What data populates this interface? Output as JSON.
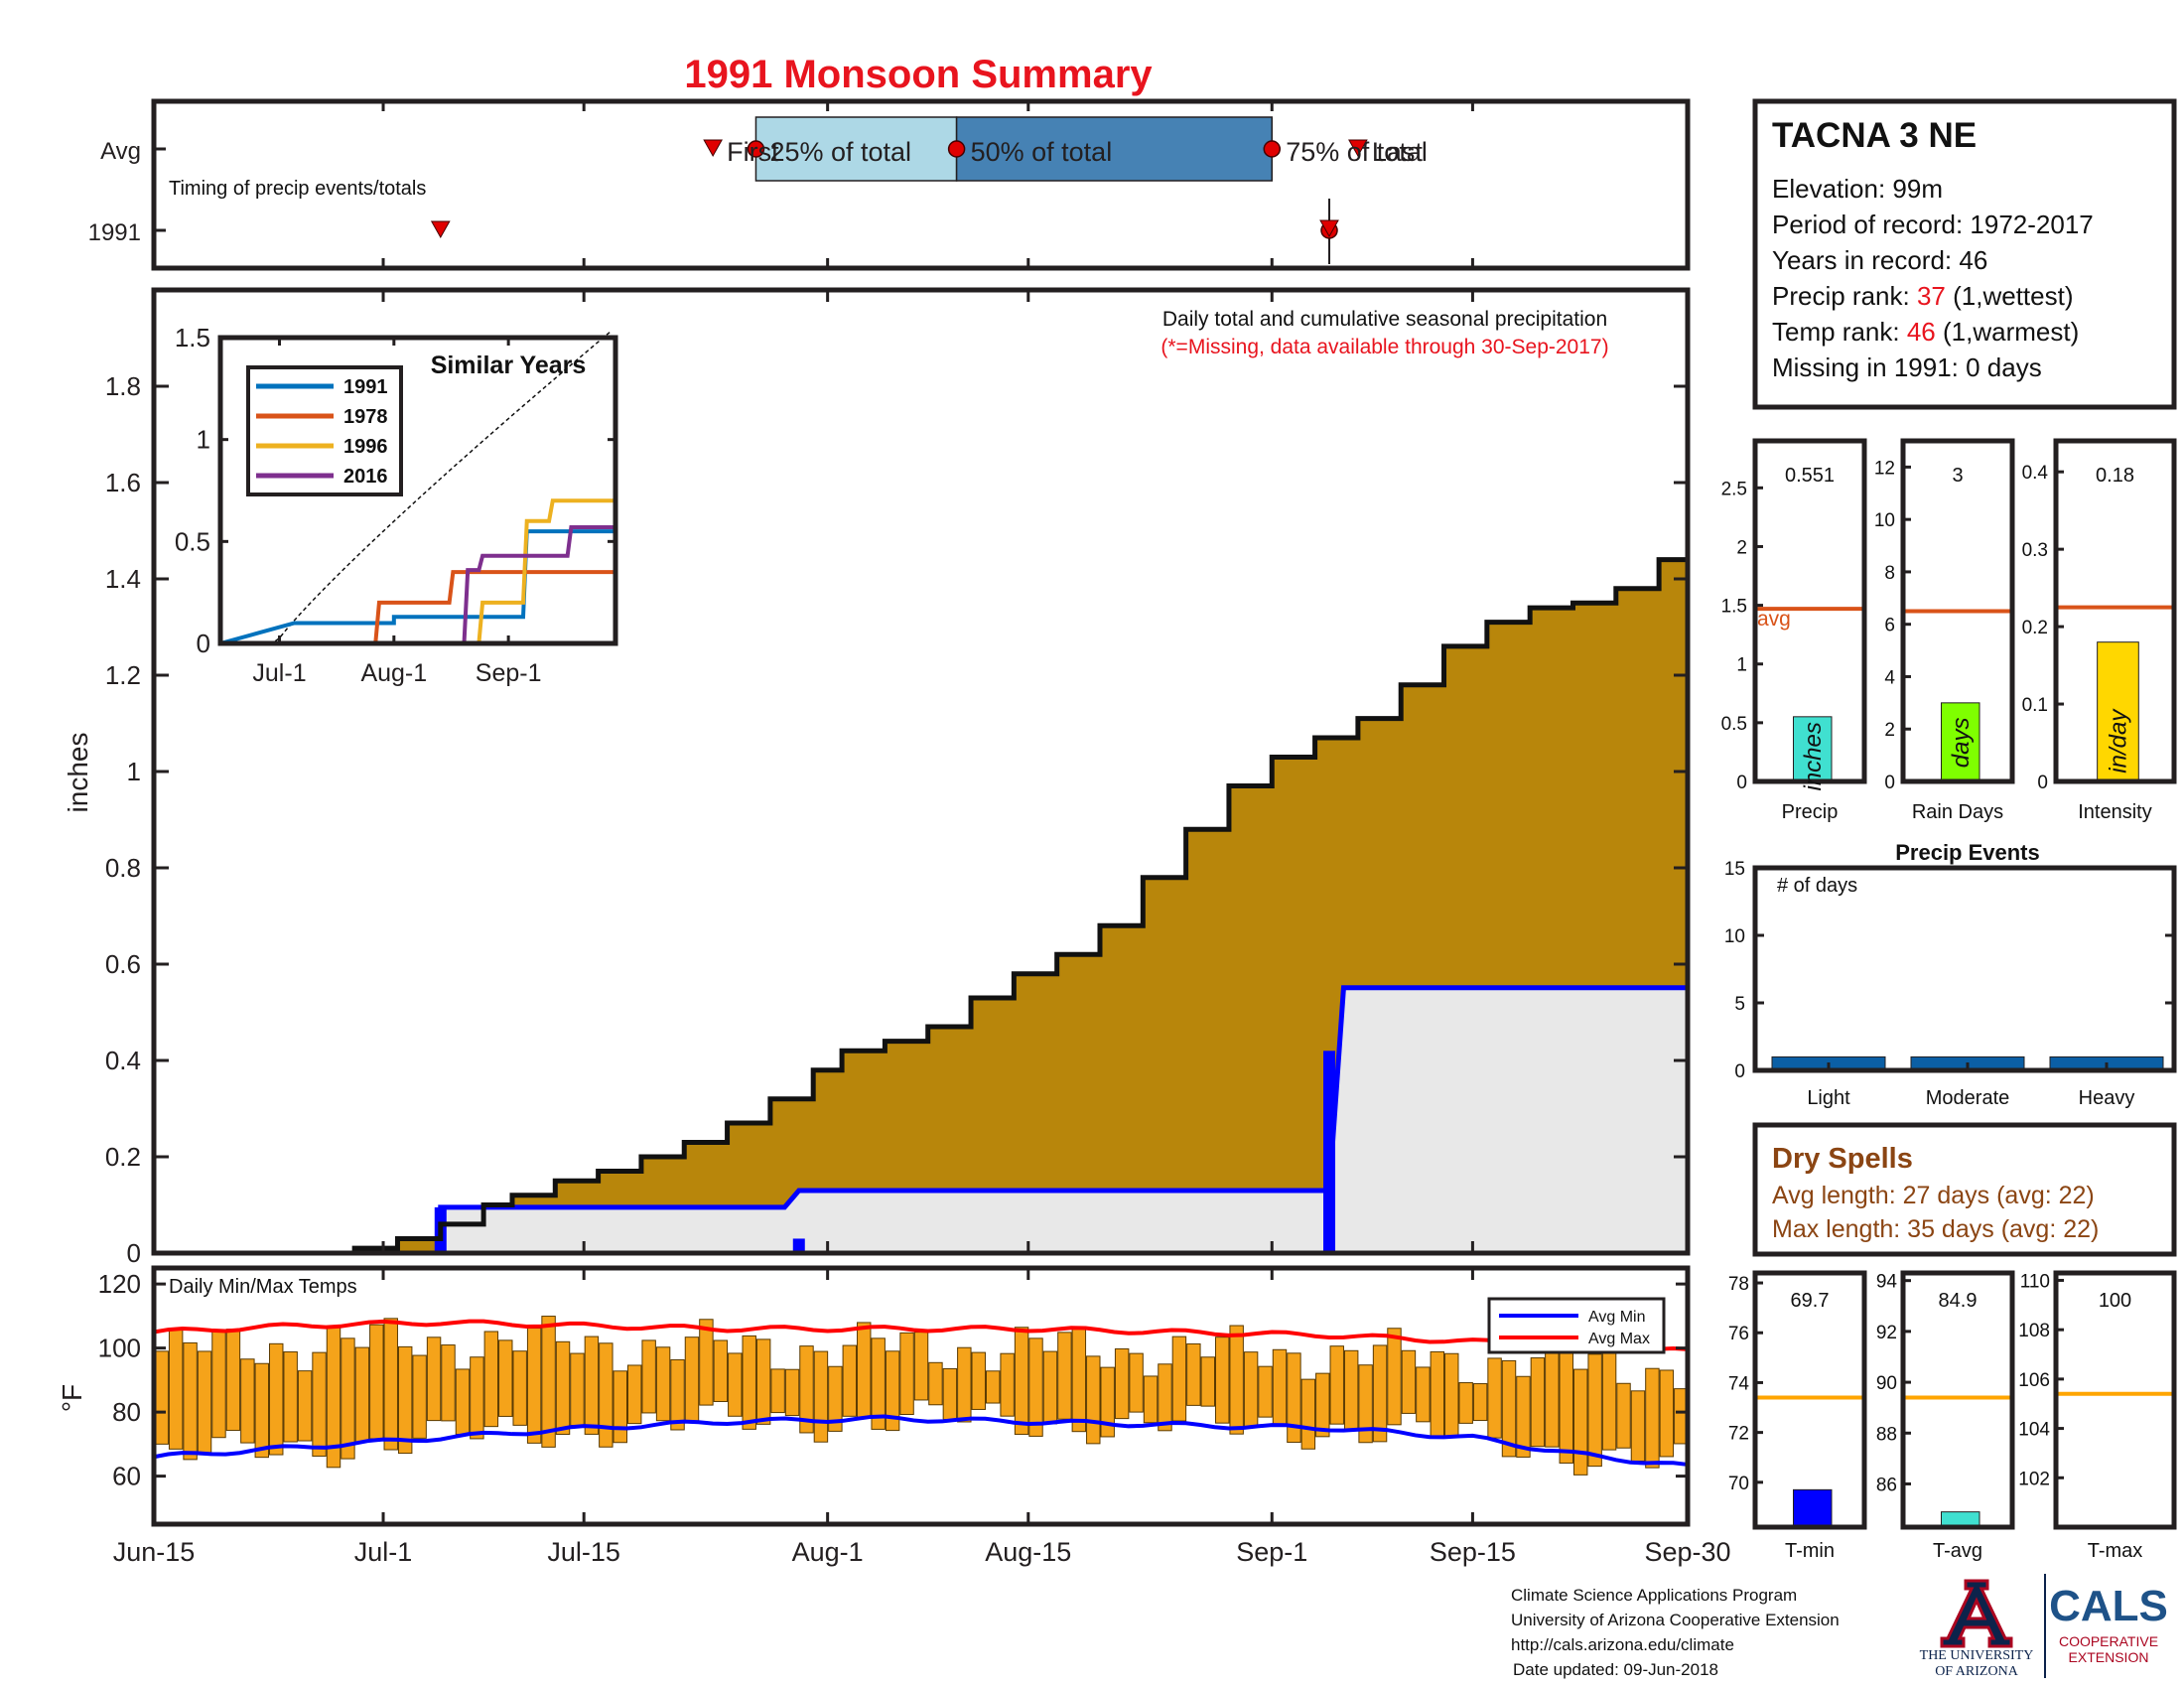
{
  "title": "1991 Monsoon Summary",
  "timing": {
    "row_labels": [
      "Avg",
      "1991"
    ],
    "caption": "Timing of precip events/totals",
    "labels": {
      "first": "First",
      "p25": "25% of total",
      "p50": "50% of total",
      "p75": "75% of total",
      "last": "Last"
    },
    "avg": {
      "first": "2018-07-24",
      "p25": "2018-07-27",
      "p50": "2018-08-10",
      "p75": "2018-09-01",
      "last": "2018-09-07"
    },
    "y1991": {
      "first": "2018-07-05",
      "p25": "2018-09-05",
      "p50": "2018-09-05",
      "p75": "2018-09-05",
      "last": "2018-09-05"
    }
  },
  "main": {
    "ylabel": "inches",
    "annotation": "Daily total and cumulative seasonal precipitation",
    "missing_note": "(*=Missing, data available through 30-Sep-2017)",
    "x_ticks": [
      "Jun-15",
      "Jul-1",
      "Jul-15",
      "Aug-1",
      "Aug-15",
      "Sep-1",
      "Sep-15",
      "Sep-30"
    ],
    "y_ticks": [
      "0",
      "0.2",
      "0.4",
      "0.6",
      "0.8",
      "1",
      "1.2",
      "1.4",
      "1.6",
      "1.8"
    ]
  },
  "inset": {
    "title": "Similar Years",
    "legend": [
      "1991",
      "1978",
      "1996",
      "2016"
    ],
    "colors": [
      "#0072bd",
      "#d95319",
      "#edb120",
      "#7e2f8e"
    ],
    "x_ticks": [
      "Jul-1",
      "Aug-1",
      "Sep-1"
    ],
    "y_ticks": [
      "0",
      "0.5",
      "1",
      "1.5"
    ]
  },
  "temps": {
    "label": "Daily Min/Max Temps",
    "ylabel": "°F",
    "legend": [
      "Avg Min",
      "Avg Max"
    ],
    "y_ticks": [
      "60",
      "80",
      "100",
      "120"
    ]
  },
  "station": {
    "name": "TACNA 3 NE",
    "elevation": "Elevation: 99m",
    "period": "Period of record: 1972-2017",
    "years": "Years in record: 46",
    "precip_rank_label": "Precip rank:",
    "precip_rank": "37",
    "precip_rank_note": "(1,wettest)",
    "temp_rank_label": "Temp rank:",
    "temp_rank": "46",
    "temp_rank_note": "(1,warmest)",
    "missing": "Missing in 1991: 0 days"
  },
  "mini_precip": [
    {
      "label": "Precip",
      "unit": "inches",
      "value_text": "0.551",
      "avg_text": "avg",
      "y_ticks": [
        "0",
        "0.5",
        "1",
        "1.5",
        "2",
        "2.5"
      ]
    },
    {
      "label": "Rain Days",
      "unit": "days",
      "value_text": "3",
      "y_ticks": [
        "0",
        "2",
        "4",
        "6",
        "8",
        "10",
        "12"
      ]
    },
    {
      "label": "Intensity",
      "unit": "in/day",
      "value_text": "0.18",
      "y_ticks": [
        "0",
        "0.1",
        "0.2",
        "0.3",
        "0.4"
      ]
    }
  ],
  "events": {
    "title": "Precip Events",
    "ylabel": "# of days",
    "categories": [
      "Light",
      "Moderate",
      "Heavy"
    ],
    "y_ticks": [
      "0",
      "5",
      "10",
      "15"
    ]
  },
  "dry_spells": {
    "title": "Dry Spells",
    "avg_length": "Avg length: 27 days (avg: 22)",
    "max_length": "Max length: 35 days (avg: 22)"
  },
  "mini_temp": [
    {
      "label": "T-min",
      "value_text": "69.7",
      "y_ticks": [
        "70",
        "72",
        "74",
        "76",
        "78"
      ]
    },
    {
      "label": "T-avg",
      "value_text": "84.9",
      "y_ticks": [
        "86",
        "88",
        "90",
        "92",
        "94"
      ]
    },
    {
      "label": "T-max",
      "value_text": "100",
      "y_ticks": [
        "102",
        "104",
        "106",
        "108",
        "110"
      ]
    }
  ],
  "footer": {
    "line1": "Climate Science Applications Program",
    "line2": "University of Arizona Cooperative Extension",
    "line3": "http://cals.arizona.edu/climate",
    "line4": "Date updated: 09-Jun-2018"
  },
  "logos": {
    "ua_line1": "THE UNIVERSITY",
    "ua_line2": "OF ARIZONA",
    "cals": "CALS",
    "cals_sub1": "COOPERATIVE",
    "cals_sub2": "EXTENSION"
  },
  "colors": {
    "cumulative_fill": "#b8860b",
    "avg_fill": "#e8e8e8",
    "avg_line": "#0000ff",
    "temp_bars": "#f5a31a",
    "avg_max_line": "#ff0000",
    "avg_min_line": "#0000ff",
    "orange_avg": "#d95319",
    "precip_bar": "#40e0d0",
    "raindays_bar": "#7fff00",
    "intensity_bar": "#ffd700",
    "event_bar": "#0b5fa5",
    "tmin_bar": "#0000ff",
    "tavg_bar": "#40e0d0",
    "temp_avg_line": "#ffa500",
    "timing_light": "#add8e6",
    "timing_dark": "#4682b4",
    "title_red": "#e8141e",
    "dry_spell": "#8b4513"
  },
  "chart_data": [
    {
      "type": "area",
      "title": "Daily total and cumulative seasonal precipitation",
      "ylabel": "inches",
      "ylim": [
        0,
        2
      ],
      "xlim": [
        "2018-06-15",
        "2018-09-30"
      ],
      "series": [
        {
          "kind": "cumulative",
          "points": [
            [
              "2018-06-15",
              0
            ],
            [
              "2018-06-25",
              0
            ],
            [
              "2018-06-29",
              0.01
            ],
            [
              "2018-07-02",
              0.03
            ],
            [
              "2018-07-05",
              0.06
            ],
            [
              "2018-07-08",
              0.1
            ],
            [
              "2018-07-10",
              0.12
            ],
            [
              "2018-07-13",
              0.15
            ],
            [
              "2018-07-16",
              0.17
            ],
            [
              "2018-07-19",
              0.2
            ],
            [
              "2018-07-22",
              0.23
            ],
            [
              "2018-07-25",
              0.27
            ],
            [
              "2018-07-28",
              0.32
            ],
            [
              "2018-07-31",
              0.38
            ],
            [
              "2018-08-02",
              0.42
            ],
            [
              "2018-08-05",
              0.44
            ],
            [
              "2018-08-08",
              0.47
            ],
            [
              "2018-08-11",
              0.53
            ],
            [
              "2018-08-14",
              0.58
            ],
            [
              "2018-08-17",
              0.62
            ],
            [
              "2018-08-20",
              0.68
            ],
            [
              "2018-08-23",
              0.78
            ],
            [
              "2018-08-26",
              0.88
            ],
            [
              "2018-08-29",
              0.97
            ],
            [
              "2018-09-01",
              1.03
            ],
            [
              "2018-09-04",
              1.07
            ],
            [
              "2018-09-07",
              1.11
            ],
            [
              "2018-09-10",
              1.18
            ],
            [
              "2018-09-13",
              1.26
            ],
            [
              "2018-09-16",
              1.31
            ],
            [
              "2018-09-19",
              1.34
            ],
            [
              "2018-09-22",
              1.35
            ],
            [
              "2018-09-25",
              1.38
            ],
            [
              "2018-09-28",
              1.44
            ],
            [
              "2018-09-30",
              1.45
            ]
          ]
        },
        {
          "kind": "1991 cumulative (blue step)",
          "points": [
            [
              "2018-07-05",
              0.095
            ],
            [
              "2018-07-29",
              0.095
            ],
            [
              "2018-07-30",
              0.13
            ],
            [
              "2018-09-05",
              0.13
            ],
            [
              "2018-09-06",
              0.551
            ],
            [
              "2018-09-30",
              0.551
            ]
          ]
        },
        {
          "kind": "daily bars",
          "points": [
            [
              "2018-07-05",
              0.095
            ],
            [
              "2018-07-30",
              0.03
            ],
            [
              "2018-09-05",
              0.42
            ]
          ]
        }
      ]
    },
    {
      "type": "line",
      "title": "Similar Years",
      "ylim": [
        0,
        1.5
      ],
      "series": [
        {
          "name": "1991",
          "points": [
            [
              "2018-06-15",
              0
            ],
            [
              "2018-07-05",
              0.1
            ],
            [
              "2018-08-01",
              0.1
            ],
            [
              "2018-08-01",
              0.13
            ],
            [
              "2018-09-05",
              0.13
            ],
            [
              "2018-09-06",
              0.55
            ],
            [
              "2018-09-30",
              0.55
            ]
          ]
        },
        {
          "name": "1978",
          "points": [
            [
              "2018-06-15",
              0
            ],
            [
              "2018-07-27",
              0
            ],
            [
              "2018-07-28",
              0.2
            ],
            [
              "2018-08-16",
              0.2
            ],
            [
              "2018-08-17",
              0.35
            ],
            [
              "2018-09-30",
              0.35
            ]
          ]
        },
        {
          "name": "1996",
          "points": [
            [
              "2018-06-15",
              0
            ],
            [
              "2018-08-24",
              0
            ],
            [
              "2018-08-25",
              0.2
            ],
            [
              "2018-09-05",
              0.2
            ],
            [
              "2018-09-06",
              0.6
            ],
            [
              "2018-09-12",
              0.6
            ],
            [
              "2018-09-13",
              0.7
            ],
            [
              "2018-09-30",
              0.7
            ]
          ]
        },
        {
          "name": "2016",
          "points": [
            [
              "2018-06-15",
              0
            ],
            [
              "2018-08-20",
              0
            ],
            [
              "2018-08-21",
              0.36
            ],
            [
              "2018-08-24",
              0.36
            ],
            [
              "2018-08-25",
              0.43
            ],
            [
              "2018-09-17",
              0.43
            ],
            [
              "2018-09-18",
              0.57
            ],
            [
              "2018-09-30",
              0.57
            ]
          ]
        }
      ]
    },
    {
      "type": "bar",
      "title": "Daily Min/Max Temps",
      "ylabel": "°F",
      "ylim": [
        45,
        125
      ],
      "series": [
        {
          "name": "Avg Min",
          "points": [
            [
              "2018-06-15",
              66
            ],
            [
              "2018-06-25",
              69
            ],
            [
              "2018-07-05",
              72
            ],
            [
              "2018-07-15",
              75
            ],
            [
              "2018-07-25",
              77
            ],
            [
              "2018-08-05",
              78
            ],
            [
              "2018-08-15",
              77
            ],
            [
              "2018-08-25",
              76
            ],
            [
              "2018-09-05",
              75
            ],
            [
              "2018-09-15",
              72
            ],
            [
              "2018-09-22",
              67
            ],
            [
              "2018-09-30",
              63
            ]
          ]
        },
        {
          "name": "Avg Max",
          "points": [
            [
              "2018-06-15",
              105
            ],
            [
              "2018-06-25",
              107
            ],
            [
              "2018-07-05",
              108
            ],
            [
              "2018-07-15",
              107
            ],
            [
              "2018-07-25",
              106
            ],
            [
              "2018-08-05",
              106
            ],
            [
              "2018-08-15",
              106
            ],
            [
              "2018-08-25",
              105
            ],
            [
              "2018-09-05",
              104
            ],
            [
              "2018-09-15",
              102
            ],
            [
              "2018-09-22",
              101
            ],
            [
              "2018-09-30",
              99
            ]
          ]
        }
      ]
    },
    {
      "type": "bar",
      "title": "Precip / Rain Days / Intensity",
      "categories": [
        "Precip",
        "Rain Days",
        "Intensity"
      ],
      "values": [
        0.551,
        3,
        0.18
      ],
      "averages": [
        1.47,
        6.5,
        0.225
      ],
      "ylims": [
        [
          0,
          2.9
        ],
        [
          0,
          13
        ],
        [
          0,
          0.44
        ]
      ]
    },
    {
      "type": "bar",
      "title": "Precip Events",
      "ylabel": "# of days",
      "categories": [
        "Light",
        "Moderate",
        "Heavy"
      ],
      "values": [
        1,
        1,
        1
      ],
      "ylim": [
        0,
        15
      ]
    },
    {
      "type": "bar",
      "title": "Temperature averages",
      "categories": [
        "T-min",
        "T-avg",
        "T-max"
      ],
      "values": [
        69.7,
        84.9,
        100
      ],
      "averages": [
        73.4,
        89.4,
        105.4
      ],
      "ylims": [
        [
          68.2,
          78.4
        ],
        [
          84.3,
          94.3
        ],
        [
          100,
          110.3
        ]
      ]
    }
  ]
}
